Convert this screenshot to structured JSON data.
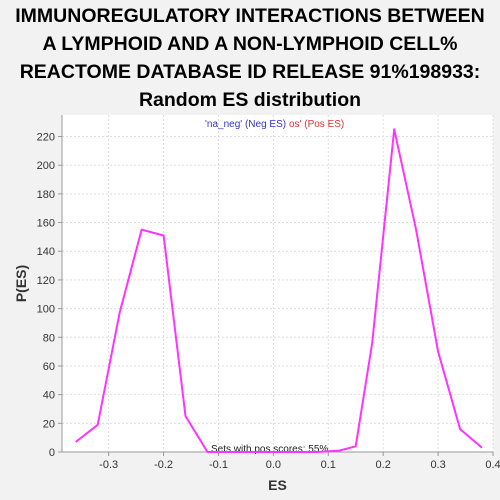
{
  "chart_data": {
    "type": "line",
    "title_lines": [
      "IMMUNOREGULATORY INTERACTIONS BETWEEN",
      "A LYMPHOID AND A NON-LYMPHOID CELL%",
      "REACTOME DATABASE ID RELEASE 91%198933:",
      "Random ES distribution"
    ],
    "xlabel": "ES",
    "ylabel": "P(ES)",
    "xlim": [
      -0.385,
      0.4
    ],
    "ylim": [
      0,
      235
    ],
    "xticks": [
      -0.3,
      -0.2,
      -0.1,
      0.0,
      0.1,
      0.2,
      0.3,
      0.4
    ],
    "xtick_labels": [
      "-0.3",
      "-0.2",
      "-0.1",
      "0.0",
      "0.1",
      "0.2",
      "0.3",
      "0.4"
    ],
    "yticks": [
      0,
      20,
      40,
      60,
      80,
      100,
      120,
      140,
      160,
      180,
      200,
      220
    ],
    "grid": true,
    "legend": {
      "neg_text": "'na_neg' (Neg ES)",
      "pos_text": "os' (Pos ES)",
      "neg_color": "#3333cc",
      "pos_color": "#dd3333",
      "placement": "top-center"
    },
    "annotation": "Sets with pos scores: 55%",
    "series": [
      {
        "color": "#ff33ff",
        "x": [
          -0.36,
          -0.32,
          -0.28,
          -0.24,
          -0.2,
          -0.16,
          -0.12,
          -0.08,
          -0.04,
          0.0,
          0.04,
          0.08,
          0.12,
          0.15,
          0.18,
          0.22,
          0.26,
          0.3,
          0.34,
          0.38
        ],
        "y": [
          7,
          19,
          97,
          155,
          151,
          25,
          0,
          0,
          0,
          0,
          0,
          0,
          1,
          4,
          76,
          225,
          155,
          70,
          16,
          3
        ]
      }
    ],
    "colors": {
      "plot_bg": "#ffffff",
      "page_bg": "#f2f2f2",
      "grid": "#dddddd",
      "axis": "#999999"
    }
  }
}
